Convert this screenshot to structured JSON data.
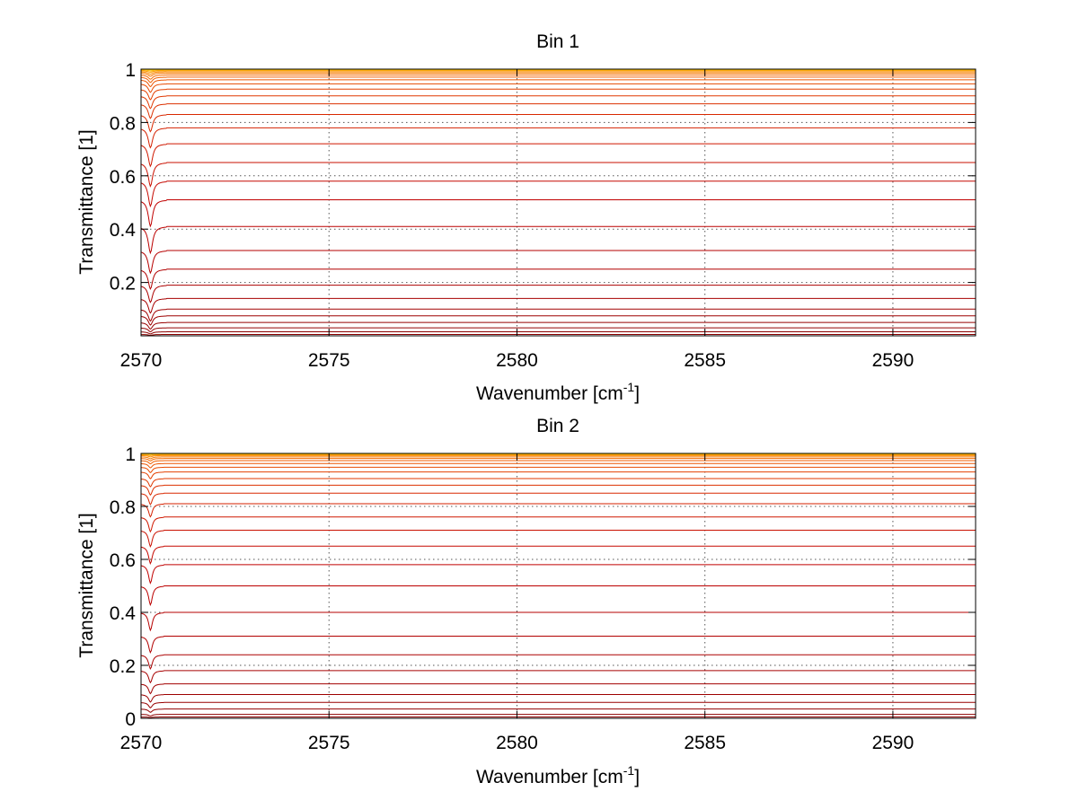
{
  "chart_data": [
    {
      "type": "line",
      "title": "Bin 1",
      "xlabel": "Wavenumber [cm",
      "xlabel_sup": "-1",
      "xlabel_suffix": "]",
      "ylabel": "Transmittance [1]",
      "xlim": [
        2570,
        2592.2
      ],
      "ylim": [
        0,
        1
      ],
      "xticks": [
        2570,
        2575,
        2580,
        2585,
        2590
      ],
      "xtick_labels": [
        "2570",
        "2575",
        "2580",
        "2585",
        "2590"
      ],
      "yticks": [
        0.2,
        0.4,
        0.6,
        0.8,
        1
      ],
      "ytick_labels": [
        "0.2",
        "0.4",
        "0.6",
        "0.8",
        "1"
      ],
      "grid": true,
      "line_spacing_cm-1": 0.74,
      "baseline_levels": [
        0.005,
        0.015,
        0.03,
        0.05,
        0.075,
        0.1,
        0.14,
        0.19,
        0.25,
        0.32,
        0.41,
        0.51,
        0.58,
        0.65,
        0.72,
        0.78,
        0.83,
        0.87,
        0.9,
        0.925,
        0.945,
        0.96,
        0.97,
        0.978,
        0.985,
        0.99,
        0.994,
        0.997,
        0.999
      ],
      "absorption_depths": [
        0.003,
        0.008,
        0.015,
        0.025,
        0.035,
        0.045,
        0.055,
        0.065,
        0.075,
        0.085,
        0.1,
        0.1,
        0.095,
        0.09,
        0.085,
        0.075,
        0.065,
        0.055,
        0.048,
        0.04,
        0.032,
        0.026,
        0.02,
        0.016,
        0.012,
        0.009,
        0.006,
        0.004,
        0.002
      ],
      "colors": [
        "#8b0000",
        "#8e0000",
        "#930000",
        "#980000",
        "#9d0000",
        "#a20000",
        "#a70000",
        "#ac0000",
        "#b10000",
        "#b60000",
        "#bb0000",
        "#c00000",
        "#c50800",
        "#ca1000",
        "#cf1800",
        "#d42000",
        "#d82800",
        "#dc3000",
        "#e03800",
        "#e44000",
        "#e84a00",
        "#ec5400",
        "#f05e00",
        "#f36a00",
        "#f67800",
        "#f98800",
        "#fb9c00",
        "#fdb400",
        "#ffd000"
      ]
    },
    {
      "type": "line",
      "title": "Bin 2",
      "xlabel": "Wavenumber [cm",
      "xlabel_sup": "-1",
      "xlabel_suffix": "]",
      "ylabel": "Transmittance [1]",
      "xlim": [
        2570,
        2592.2
      ],
      "ylim": [
        0,
        1
      ],
      "xticks": [
        2570,
        2575,
        2580,
        2585,
        2590
      ],
      "xtick_labels": [
        "2570",
        "2575",
        "2580",
        "2585",
        "2590"
      ],
      "yticks": [
        0,
        0.2,
        0.4,
        0.6,
        0.8,
        1
      ],
      "ytick_labels": [
        "0",
        "0.2",
        "0.4",
        "0.6",
        "0.8",
        "1"
      ],
      "grid": true,
      "line_spacing_cm-1": 0.5,
      "baseline_levels": [
        0.005,
        0.015,
        0.035,
        0.06,
        0.09,
        0.13,
        0.18,
        0.24,
        0.31,
        0.4,
        0.5,
        0.58,
        0.65,
        0.71,
        0.76,
        0.81,
        0.85,
        0.88,
        0.905,
        0.93,
        0.948,
        0.962,
        0.973,
        0.981,
        0.987,
        0.992,
        0.995,
        0.998,
        0.999
      ],
      "absorption_depths": [
        0.002,
        0.006,
        0.012,
        0.02,
        0.028,
        0.036,
        0.044,
        0.052,
        0.06,
        0.066,
        0.07,
        0.068,
        0.064,
        0.06,
        0.054,
        0.048,
        0.042,
        0.036,
        0.03,
        0.025,
        0.02,
        0.016,
        0.012,
        0.009,
        0.007,
        0.005,
        0.003,
        0.002,
        0.001
      ],
      "colors": [
        "#8b0000",
        "#8e0000",
        "#930000",
        "#980000",
        "#9d0000",
        "#a20000",
        "#a70000",
        "#ac0000",
        "#b10000",
        "#b60000",
        "#bb0000",
        "#c00000",
        "#c50800",
        "#ca1000",
        "#cf1800",
        "#d42000",
        "#d82800",
        "#dc3000",
        "#e03800",
        "#e44000",
        "#e84a00",
        "#ec5400",
        "#f05e00",
        "#f36a00",
        "#f67800",
        "#f98800",
        "#fb9c00",
        "#fdb400",
        "#ffd000"
      ]
    }
  ]
}
